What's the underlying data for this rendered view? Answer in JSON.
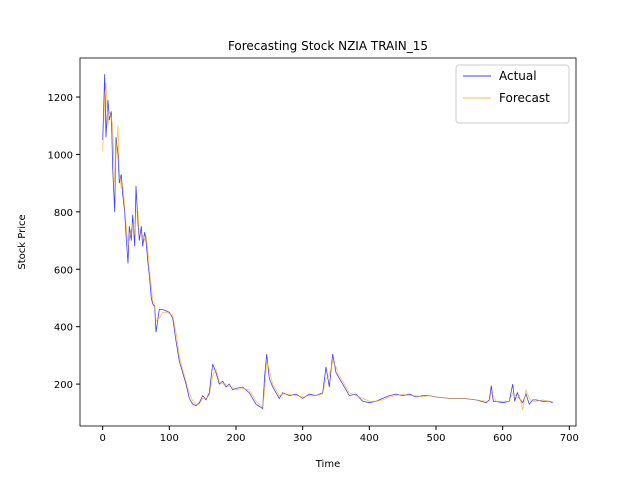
{
  "chart_data": {
    "type": "line",
    "title": "Forecasting Stock NZIA TRAIN_15",
    "x_label": "Time",
    "y_label": "Stock Price",
    "x": [
      0,
      3,
      5,
      8,
      10,
      13,
      15,
      18,
      20,
      23,
      25,
      28,
      30,
      33,
      35,
      38,
      40,
      43,
      45,
      48,
      50,
      53,
      55,
      58,
      60,
      63,
      65,
      68,
      70,
      73,
      75,
      78,
      80,
      85,
      90,
      95,
      100,
      105,
      110,
      115,
      120,
      125,
      130,
      135,
      140,
      145,
      150,
      155,
      160,
      165,
      170,
      175,
      180,
      185,
      190,
      195,
      200,
      210,
      220,
      230,
      240,
      243,
      246,
      250,
      255,
      260,
      265,
      270,
      280,
      290,
      300,
      310,
      320,
      330,
      335,
      340,
      345,
      350,
      355,
      360,
      370,
      380,
      390,
      400,
      410,
      420,
      430,
      440,
      450,
      460,
      470,
      480,
      490,
      500,
      520,
      540,
      560,
      575,
      580,
      583,
      586,
      590,
      600,
      610,
      615,
      618,
      622,
      625,
      630,
      635,
      640,
      645,
      650,
      660,
      670,
      675
    ],
    "series": [
      {
        "name": "Actual",
        "color": "#0000ff",
        "values": [
          1050,
          1280,
          1060,
          1190,
          1120,
          1150,
          950,
          800,
          1060,
          1000,
          900,
          930,
          860,
          800,
          720,
          620,
          750,
          700,
          790,
          680,
          890,
          760,
          700,
          750,
          680,
          730,
          700,
          620,
          580,
          500,
          480,
          470,
          380,
          460,
          460,
          455,
          450,
          430,
          350,
          280,
          240,
          200,
          150,
          130,
          125,
          135,
          160,
          145,
          170,
          270,
          240,
          200,
          210,
          190,
          200,
          180,
          185,
          190,
          170,
          130,
          115,
          230,
          305,
          220,
          190,
          170,
          150,
          170,
          160,
          165,
          150,
          165,
          160,
          170,
          260,
          190,
          305,
          240,
          220,
          200,
          160,
          165,
          140,
          135,
          140,
          150,
          160,
          165,
          160,
          165,
          155,
          160,
          160,
          155,
          150,
          150,
          145,
          135,
          145,
          195,
          140,
          140,
          135,
          140,
          200,
          140,
          170,
          150,
          135,
          165,
          130,
          145,
          145,
          140,
          140,
          135
        ]
      },
      {
        "name": "Forecast",
        "color": "#ffa500",
        "values": [
          1010,
          1200,
          1250,
          1100,
          1150,
          1130,
          1100,
          900,
          1000,
          1100,
          950,
          880,
          900,
          820,
          760,
          680,
          700,
          740,
          760,
          720,
          800,
          800,
          720,
          720,
          720,
          700,
          720,
          660,
          600,
          540,
          490,
          480,
          420,
          430,
          450,
          450,
          445,
          440,
          380,
          300,
          250,
          210,
          170,
          140,
          130,
          130,
          150,
          150,
          160,
          230,
          250,
          210,
          200,
          200,
          190,
          190,
          180,
          185,
          180,
          140,
          120,
          180,
          280,
          250,
          200,
          180,
          160,
          165,
          165,
          160,
          155,
          160,
          160,
          165,
          220,
          230,
          280,
          260,
          230,
          210,
          170,
          160,
          150,
          140,
          140,
          145,
          155,
          160,
          165,
          160,
          160,
          155,
          160,
          155,
          150,
          150,
          145,
          140,
          140,
          170,
          160,
          140,
          140,
          140,
          170,
          165,
          150,
          160,
          110,
          180,
          150,
          140,
          140,
          145,
          140,
          140
        ]
      }
    ],
    "xlim": [
      -34,
      710
    ],
    "xticks": [
      0,
      100,
      200,
      300,
      400,
      500,
      600,
      700
    ],
    "ylim": [
      54,
      1336
    ],
    "yticks": [
      200,
      400,
      600,
      800,
      1000,
      1200
    ],
    "legend": "upper right"
  }
}
